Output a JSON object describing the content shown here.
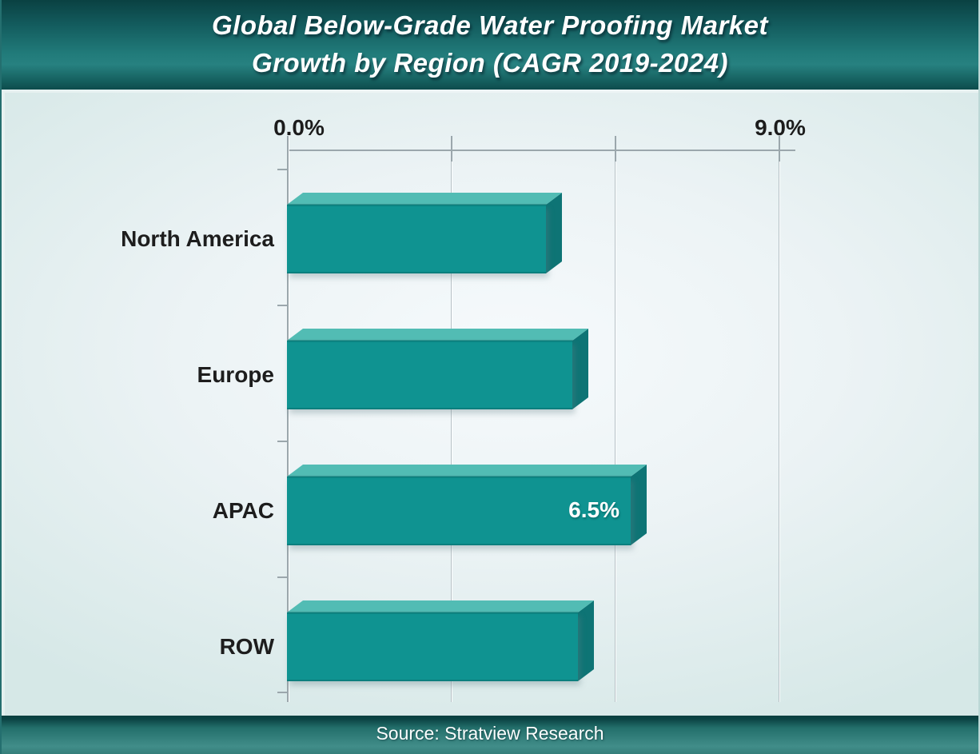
{
  "header": {
    "title_line1": "Global Below-Grade Water Proofing Market",
    "title_line2": "Growth by Region (CAGR 2019-2024)"
  },
  "chart_data": {
    "type": "bar",
    "orientation": "horizontal",
    "title": "Global Below-Grade Water Proofing Market Growth by Region (CAGR 2019-2024)",
    "categories": [
      "North America",
      "Europe",
      "APAC",
      "ROW"
    ],
    "values": [
      4.9,
      5.4,
      6.5,
      5.5
    ],
    "data_labels": [
      "",
      "",
      "6.5%",
      ""
    ],
    "xlim": [
      0,
      9
    ],
    "x_tick_labels": [
      "0.0%",
      "9.0%"
    ],
    "gridline_values": [
      0,
      3,
      6,
      9
    ],
    "legend": "none",
    "grid": "vertical-only",
    "colors": {
      "bar_front": "#0f9391",
      "bar_top": "#52bcb4",
      "bar_side": "#0e7475",
      "header_teal_dark": "#0a4142",
      "header_teal_light": "#278180",
      "plot_bg_light": "#f6fafc",
      "plot_bg_edge": "#d6e8e7",
      "gridline": "#b6c1c6",
      "label_text": "#1d1d1d",
      "value_label_text": "#ffffff"
    }
  },
  "footer": {
    "source": "Source: Stratview Research"
  }
}
